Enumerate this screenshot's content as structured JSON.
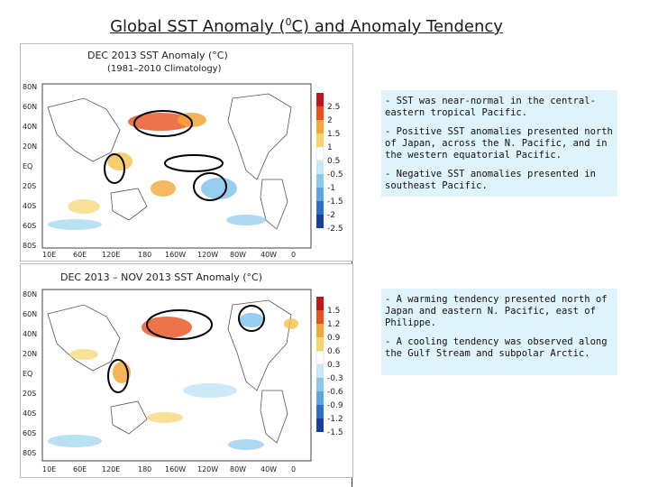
{
  "slide": {
    "title_main": "Global SST Anomaly (",
    "title_sup": "0",
    "title_end": "C) and Anomaly Tendency"
  },
  "map1": {
    "title": "DEC 2013 SST Anomaly (°C)",
    "subtitle": "(1981–2010 Climatology)",
    "lat_labels": [
      "80N",
      "60N",
      "40N",
      "20N",
      "EQ",
      "20S",
      "40S",
      "60S",
      "80S"
    ],
    "lon_labels": [
      "10E",
      "60E",
      "120E",
      "180",
      "160W",
      "120W",
      "80W",
      "40W",
      "0"
    ],
    "colorbar": [
      "2.5",
      "2",
      "1.5",
      "1",
      "0.5",
      "-0.5",
      "-1",
      "-1.5",
      "-2",
      "-2.5"
    ]
  },
  "map2": {
    "title": "DEC 2013 – NOV 2013 SST Anomaly (°C)",
    "lat_labels": [
      "80N",
      "60N",
      "40N",
      "20N",
      "EQ",
      "20S",
      "40S",
      "60S",
      "80S"
    ],
    "lon_labels": [
      "10E",
      "60E",
      "120E",
      "180",
      "160W",
      "120W",
      "80W",
      "40W",
      "0"
    ],
    "colorbar": [
      "1.5",
      "1.2",
      "0.9",
      "0.6",
      "0.3",
      "-0.3",
      "-0.6",
      "-0.9",
      "-1.2",
      "-1.5"
    ]
  },
  "box1": {
    "p1": "- SST was near-normal in the central-eastern tropical Pacific.",
    "p2": "- Positive SST anomalies presented north of Japan, across the N. Pacific, and in the western equatorial Pacific.",
    "p3": "- Negative SST anomalies presented in southeast Pacific."
  },
  "box2": {
    "p1": "- A warming tendency presented north of Japan and eastern N. Pacific, east of Philippe.",
    "p2": "- A cooling tendency was observed along the Gulf Stream and subpolar Arctic."
  },
  "colors": {
    "highlight_box": "#dff3fb",
    "ellipse": "#000000",
    "warm": "#e8501e",
    "cool": "#3a8fd8"
  }
}
